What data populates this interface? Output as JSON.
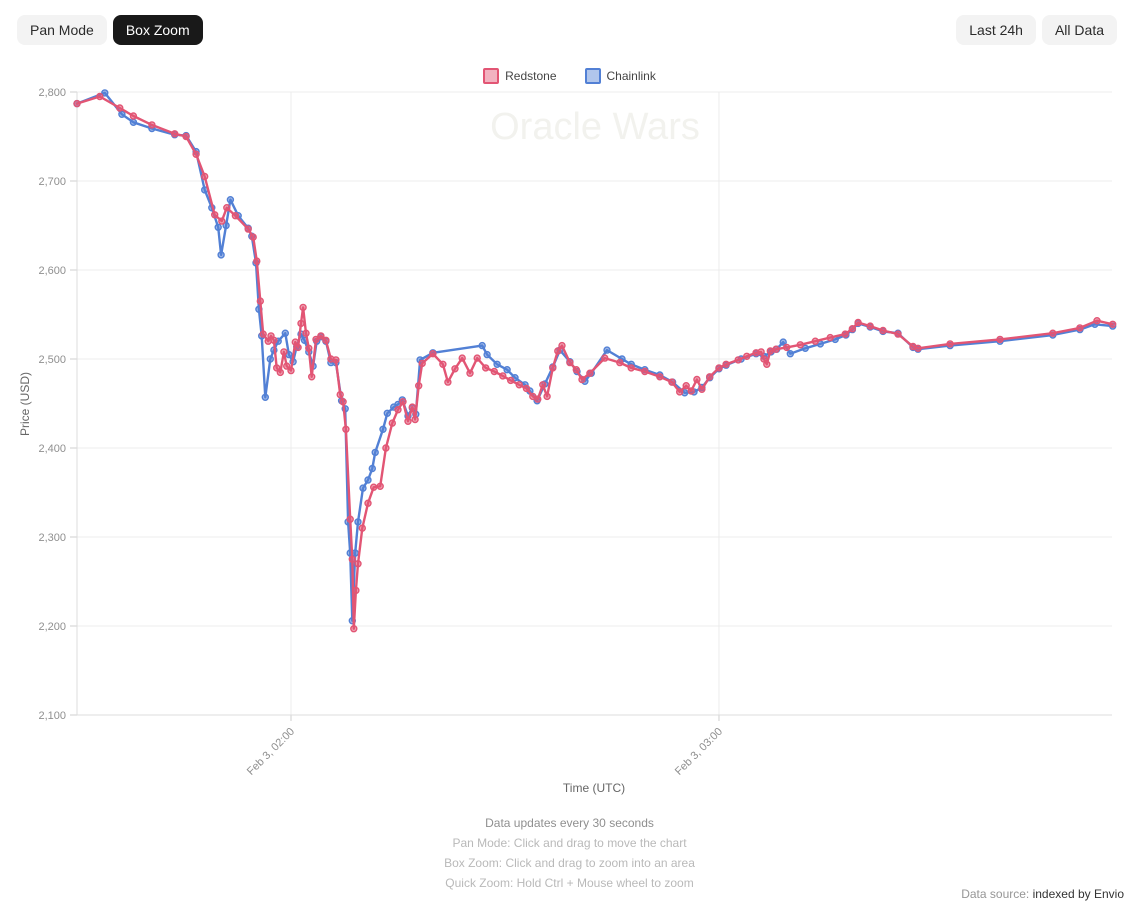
{
  "toolbar": {
    "pan_mode": "Pan Mode",
    "box_zoom": "Box Zoom",
    "last_24h": "Last 24h",
    "all_data": "All Data"
  },
  "watermark": "Oracle Wars",
  "footer": {
    "updates": "Data updates every 30 seconds",
    "pan_hint": "Pan Mode: Click and drag to move the chart",
    "box_hint": "Box Zoom: Click and drag to zoom into an area",
    "quick_hint": "Quick Zoom: Hold Ctrl + Mouse wheel to zoom"
  },
  "datasource": {
    "prefix": "Data source: ",
    "link": "indexed by Envio"
  },
  "chart_data": {
    "type": "line",
    "title": "Oracle Wars",
    "xlabel": "Time (UTC)",
    "ylabel": "Price (USD)",
    "ylim": [
      2100,
      2800
    ],
    "x_unit": "minutes since Feb 3 01:30 UTC",
    "xlim": [
      0,
      146
    ],
    "grid": true,
    "legend_position": "top-center",
    "y_ticks": [
      {
        "value": 2100,
        "label": "2,100"
      },
      {
        "value": 2200,
        "label": "2,200"
      },
      {
        "value": 2300,
        "label": "2,300"
      },
      {
        "value": 2400,
        "label": "2,400"
      },
      {
        "value": 2500,
        "label": "2,500"
      },
      {
        "value": 2600,
        "label": "2,600"
      },
      {
        "value": 2700,
        "label": "2,700"
      },
      {
        "value": 2800,
        "label": "2,800"
      }
    ],
    "x_ticks": [
      {
        "t": 30,
        "label": "Feb 3, 02:00"
      },
      {
        "t": 90,
        "label": "Feb 3, 03:00"
      }
    ],
    "series": [
      {
        "name": "Redstone",
        "color": "#e25574",
        "points": [
          [
            0,
            2787
          ],
          [
            3.2,
            2795
          ],
          [
            6,
            2782
          ],
          [
            7.9,
            2773
          ],
          [
            10.5,
            2763
          ],
          [
            13.7,
            2753
          ],
          [
            15.3,
            2750
          ],
          [
            16.7,
            2730
          ],
          [
            17.9,
            2705
          ],
          [
            19.3,
            2662
          ],
          [
            20.3,
            2655
          ],
          [
            21,
            2670
          ],
          [
            22.2,
            2661
          ],
          [
            24,
            2646
          ],
          [
            24.7,
            2637
          ],
          [
            25.2,
            2610
          ],
          [
            25.7,
            2565
          ],
          [
            26.1,
            2528
          ],
          [
            26.8,
            2520
          ],
          [
            27.2,
            2526
          ],
          [
            27.6,
            2521
          ],
          [
            28,
            2490
          ],
          [
            28.5,
            2485
          ],
          [
            29,
            2508
          ],
          [
            29.4,
            2492
          ],
          [
            30,
            2487
          ],
          [
            30.6,
            2519
          ],
          [
            31,
            2513
          ],
          [
            31.4,
            2540
          ],
          [
            31.7,
            2558
          ],
          [
            32.1,
            2529
          ],
          [
            32.5,
            2512
          ],
          [
            32.9,
            2480
          ],
          [
            33.5,
            2522
          ],
          [
            34.2,
            2526
          ],
          [
            34.9,
            2521
          ],
          [
            35.6,
            2500
          ],
          [
            36.3,
            2499
          ],
          [
            36.9,
            2460
          ],
          [
            37.3,
            2452
          ],
          [
            37.7,
            2421
          ],
          [
            38.3,
            2320
          ],
          [
            38.6,
            2275
          ],
          [
            38.8,
            2197
          ],
          [
            39.1,
            2240
          ],
          [
            39.4,
            2270
          ],
          [
            40,
            2310
          ],
          [
            40.8,
            2338
          ],
          [
            41.6,
            2356
          ],
          [
            42.5,
            2357
          ],
          [
            43.3,
            2400
          ],
          [
            44.2,
            2428
          ],
          [
            45,
            2443
          ],
          [
            45.7,
            2452
          ],
          [
            46.4,
            2430
          ],
          [
            47,
            2446
          ],
          [
            47.4,
            2432
          ],
          [
            47.9,
            2470
          ],
          [
            48.4,
            2495
          ],
          [
            49.9,
            2506
          ],
          [
            51.3,
            2494
          ],
          [
            52,
            2474
          ],
          [
            53,
            2489
          ],
          [
            54,
            2501
          ],
          [
            55.1,
            2484
          ],
          [
            56.1,
            2501
          ],
          [
            57.3,
            2490
          ],
          [
            58.5,
            2486
          ],
          [
            59.7,
            2481
          ],
          [
            60.8,
            2476
          ],
          [
            62,
            2471
          ],
          [
            63,
            2467
          ],
          [
            63.9,
            2458
          ],
          [
            64.6,
            2455
          ],
          [
            65.3,
            2471
          ],
          [
            65.9,
            2458
          ],
          [
            66.7,
            2490
          ],
          [
            67.4,
            2509
          ],
          [
            68,
            2515
          ],
          [
            69.1,
            2496
          ],
          [
            70,
            2488
          ],
          [
            70.8,
            2477
          ],
          [
            71.9,
            2484
          ],
          [
            74,
            2501
          ],
          [
            76.1,
            2496
          ],
          [
            77.7,
            2490
          ],
          [
            79.6,
            2486
          ],
          [
            81.7,
            2480
          ],
          [
            83.4,
            2474
          ],
          [
            84.5,
            2463
          ],
          [
            85.4,
            2470
          ],
          [
            86.1,
            2464
          ],
          [
            86.9,
            2477
          ],
          [
            87.6,
            2466
          ],
          [
            88.7,
            2480
          ],
          [
            90,
            2490
          ],
          [
            91,
            2494
          ],
          [
            92.7,
            2499
          ],
          [
            93.9,
            2503
          ],
          [
            95.2,
            2507
          ],
          [
            95.9,
            2508
          ],
          [
            96.3,
            2500
          ],
          [
            96.7,
            2494
          ],
          [
            97.2,
            2509
          ],
          [
            98,
            2511
          ],
          [
            99.5,
            2513
          ],
          [
            101.4,
            2516
          ],
          [
            103.5,
            2520
          ],
          [
            105.6,
            2524
          ],
          [
            107.7,
            2528
          ],
          [
            108.7,
            2534
          ],
          [
            109.5,
            2541
          ],
          [
            111.2,
            2537
          ],
          [
            113,
            2532
          ],
          [
            115.1,
            2528
          ],
          [
            117.2,
            2514
          ],
          [
            117.9,
            2512
          ],
          [
            122.4,
            2517
          ],
          [
            129.4,
            2522
          ],
          [
            136.8,
            2529
          ],
          [
            140.6,
            2535
          ],
          [
            143,
            2543
          ],
          [
            145.2,
            2539
          ]
        ]
      },
      {
        "name": "Chainlink",
        "color": "#5280d5",
        "points": [
          [
            0,
            2787
          ],
          [
            3.9,
            2799
          ],
          [
            6.3,
            2775
          ],
          [
            7.9,
            2766
          ],
          [
            10.5,
            2759
          ],
          [
            13.7,
            2752
          ],
          [
            15.3,
            2751
          ],
          [
            16.7,
            2733
          ],
          [
            17.9,
            2690
          ],
          [
            18.9,
            2670
          ],
          [
            19.8,
            2648
          ],
          [
            20.2,
            2617
          ],
          [
            20.9,
            2650
          ],
          [
            21.5,
            2679
          ],
          [
            22.6,
            2661
          ],
          [
            24,
            2647
          ],
          [
            24.5,
            2638
          ],
          [
            25.1,
            2608
          ],
          [
            25.5,
            2556
          ],
          [
            25.9,
            2526
          ],
          [
            26.4,
            2457
          ],
          [
            27.1,
            2500
          ],
          [
            27.6,
            2510
          ],
          [
            28.2,
            2520
          ],
          [
            29.2,
            2529
          ],
          [
            29.7,
            2505
          ],
          [
            30.3,
            2497
          ],
          [
            30.8,
            2514
          ],
          [
            31.4,
            2528
          ],
          [
            31.9,
            2521
          ],
          [
            32.5,
            2508
          ],
          [
            33.1,
            2492
          ],
          [
            33.6,
            2520
          ],
          [
            34.2,
            2525
          ],
          [
            34.9,
            2520
          ],
          [
            35.6,
            2496
          ],
          [
            36.3,
            2496
          ],
          [
            37.1,
            2453
          ],
          [
            37.6,
            2444
          ],
          [
            38,
            2317
          ],
          [
            38.3,
            2282
          ],
          [
            38.6,
            2206
          ],
          [
            39,
            2282
          ],
          [
            39.4,
            2317
          ],
          [
            40.1,
            2355
          ],
          [
            40.8,
            2364
          ],
          [
            41.4,
            2377
          ],
          [
            41.8,
            2395
          ],
          [
            42.9,
            2421
          ],
          [
            43.5,
            2439
          ],
          [
            44.4,
            2446
          ],
          [
            45,
            2449
          ],
          [
            45.6,
            2454
          ],
          [
            46.4,
            2436
          ],
          [
            47,
            2445
          ],
          [
            47.5,
            2438
          ],
          [
            48.1,
            2499
          ],
          [
            49.9,
            2507
          ],
          [
            56.8,
            2515
          ],
          [
            57.5,
            2505
          ],
          [
            58.9,
            2494
          ],
          [
            60.3,
            2488
          ],
          [
            61.4,
            2479
          ],
          [
            62.8,
            2471
          ],
          [
            63.5,
            2464
          ],
          [
            64.5,
            2453
          ],
          [
            65.6,
            2472
          ],
          [
            66.7,
            2491
          ],
          [
            67.7,
            2510
          ],
          [
            69.1,
            2497
          ],
          [
            70.1,
            2486
          ],
          [
            71.2,
            2475
          ],
          [
            72.1,
            2484
          ],
          [
            74.3,
            2510
          ],
          [
            76.4,
            2500
          ],
          [
            77.7,
            2494
          ],
          [
            79.6,
            2488
          ],
          [
            81.7,
            2482
          ],
          [
            83.5,
            2474
          ],
          [
            85.2,
            2462
          ],
          [
            86.5,
            2463
          ],
          [
            87.6,
            2468
          ],
          [
            88.7,
            2479
          ],
          [
            90,
            2489
          ],
          [
            91,
            2493
          ],
          [
            93.1,
            2500
          ],
          [
            95.2,
            2506
          ],
          [
            96.3,
            2503
          ],
          [
            97.3,
            2508
          ],
          [
            98.1,
            2511
          ],
          [
            99,
            2519
          ],
          [
            100,
            2506
          ],
          [
            102.1,
            2512
          ],
          [
            104.2,
            2517
          ],
          [
            106.3,
            2522
          ],
          [
            107.8,
            2527
          ],
          [
            108.7,
            2533
          ],
          [
            109.5,
            2540
          ],
          [
            111.2,
            2536
          ],
          [
            113,
            2531
          ],
          [
            115.1,
            2529
          ],
          [
            117.2,
            2513
          ],
          [
            117.9,
            2511
          ],
          [
            122.4,
            2515
          ],
          [
            129.4,
            2520
          ],
          [
            136.8,
            2527
          ],
          [
            140.6,
            2533
          ],
          [
            142.7,
            2539
          ],
          [
            145.2,
            2537
          ]
        ]
      }
    ]
  }
}
